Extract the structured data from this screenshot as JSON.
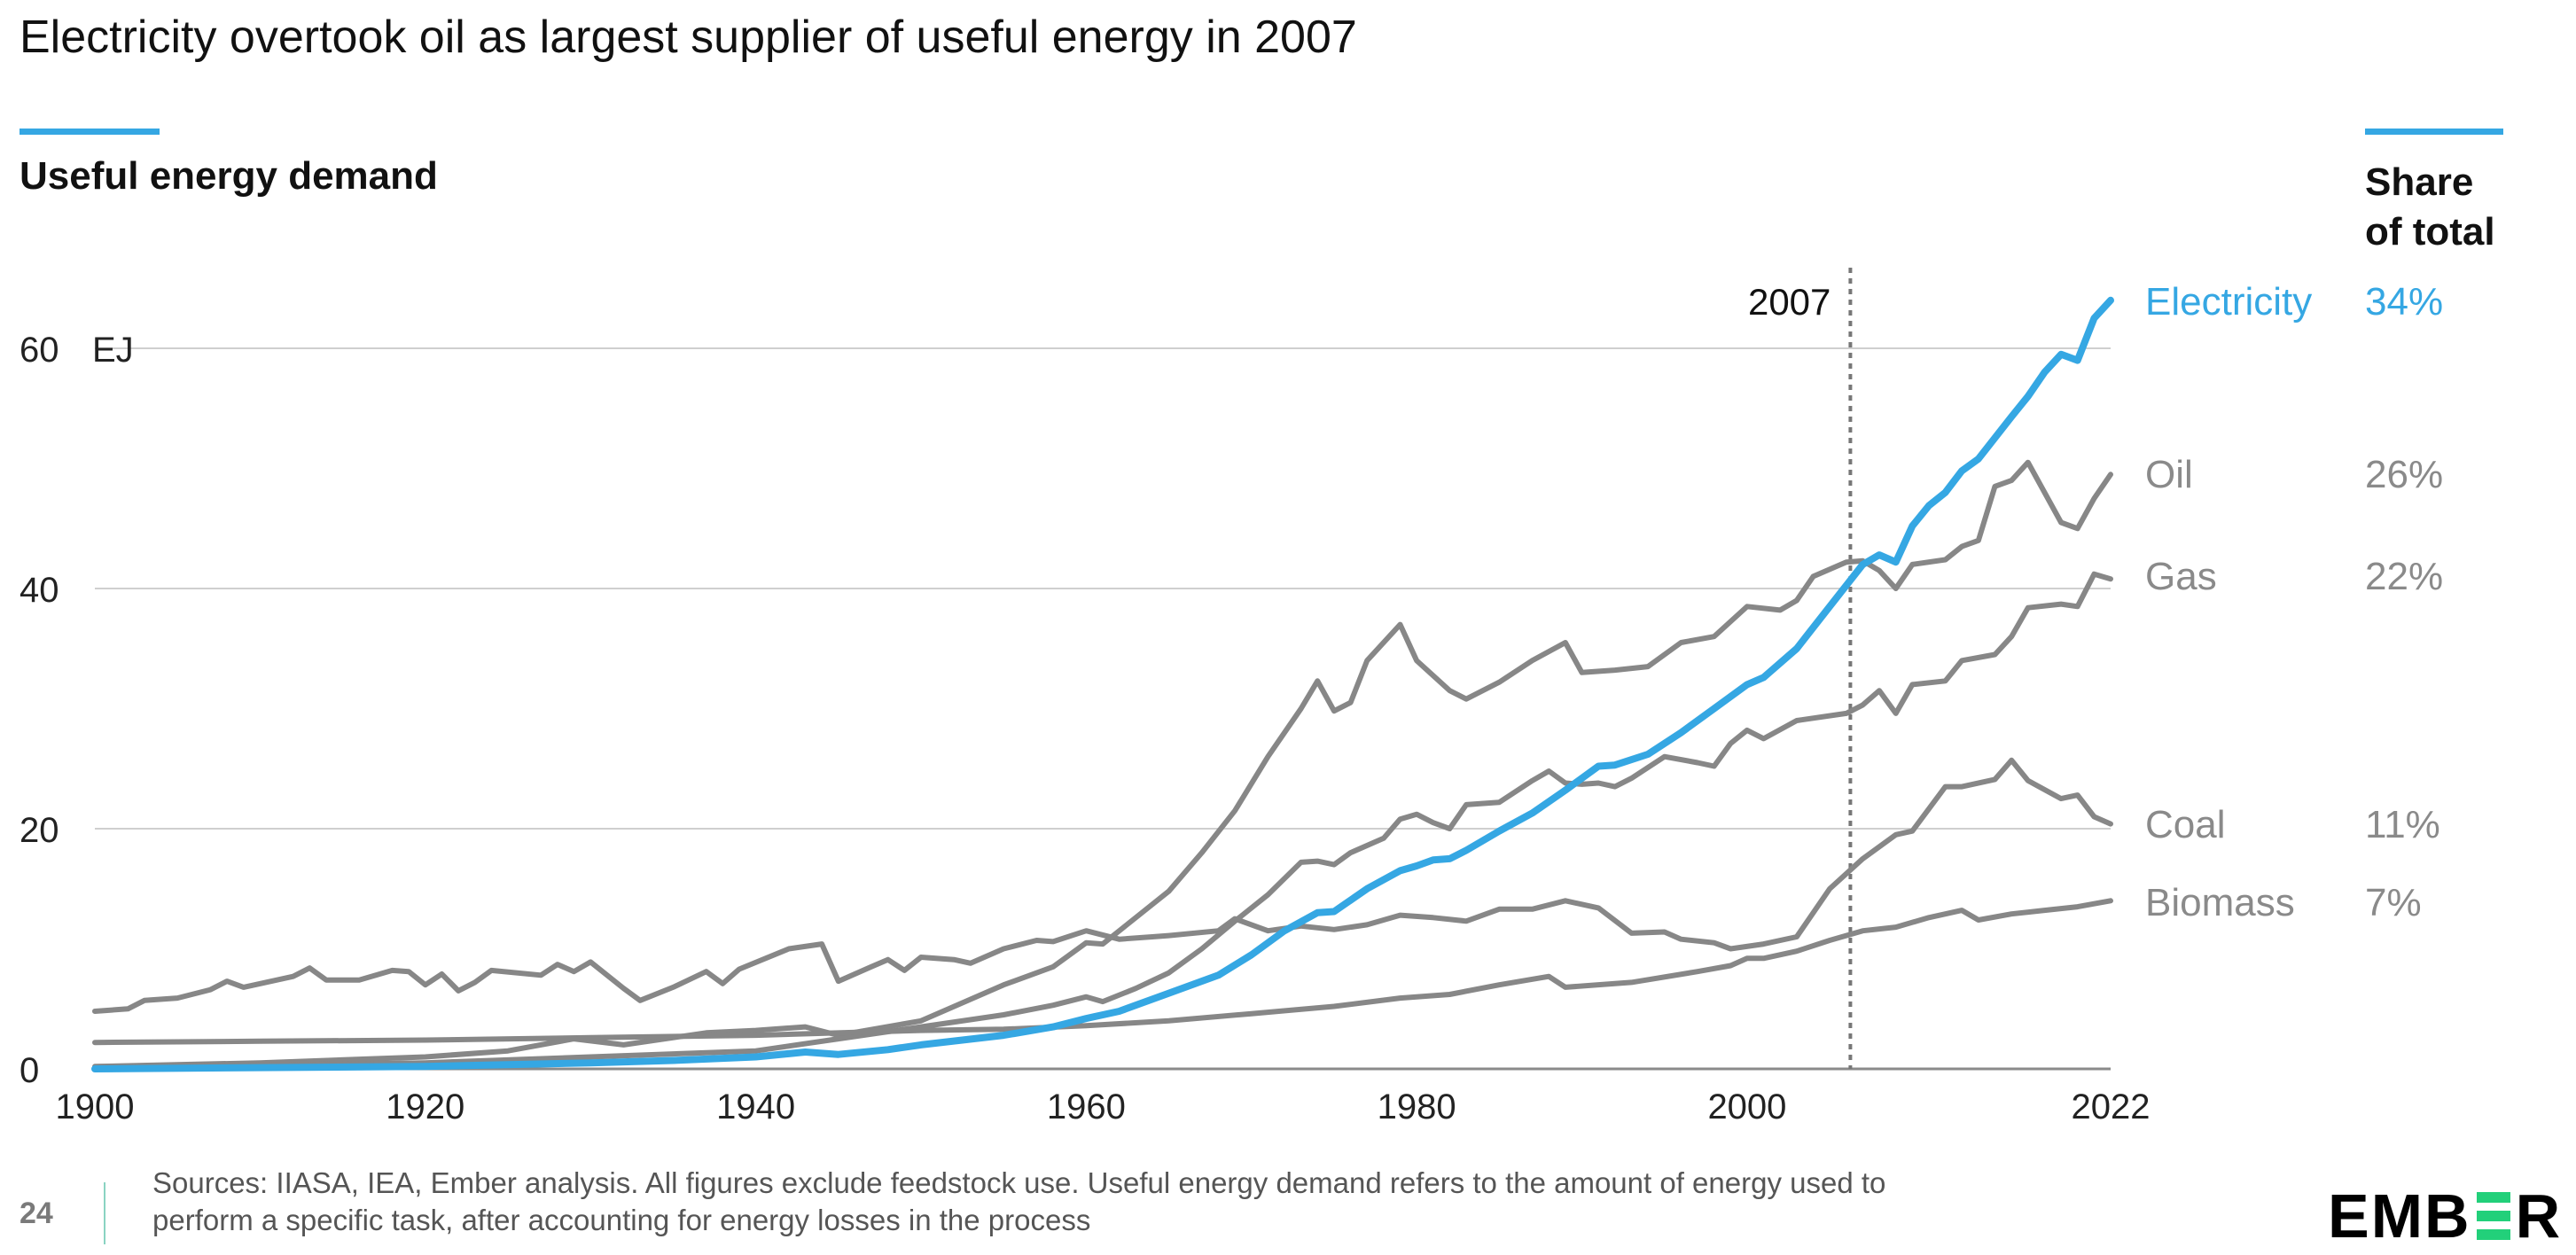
{
  "title": "Electricity overtook oil as largest supplier of useful energy in 2007",
  "subtitle": "Useful energy demand",
  "share_header": [
    "Share",
    "of total"
  ],
  "footer": {
    "page_number": "24",
    "sources_line1": "Sources: IIASA, IEA, Ember analysis. All figures exclude feedstock use. Useful energy demand refers to the amount of energy used to",
    "sources_line2": "perform a specific task, after accounting for energy losses in the process",
    "logo": "EMBER"
  },
  "colors": {
    "accent": "#35a7e3",
    "gray": "#878787",
    "logo_green": "#22d07a"
  },
  "chart_data": {
    "type": "line",
    "title": "Useful energy demand",
    "ylabel": "EJ",
    "xlim": [
      1900,
      2022
    ],
    "ylim": [
      0,
      64
    ],
    "x_ticks": [
      "1900",
      "1920",
      "1940",
      "1960",
      "1980",
      "2000",
      "2022"
    ],
    "y_ticks": [
      "0",
      "20",
      "40",
      "60"
    ],
    "y_unit": "EJ",
    "grid": true,
    "annotation": {
      "x": 2007,
      "label": "2007"
    },
    "series": [
      {
        "name": "Coal",
        "share": "11%",
        "highlight": false,
        "x": [
          1900,
          1902,
          1903,
          1905,
          1907,
          1908,
          1909,
          1912,
          1913,
          1914,
          1916,
          1918,
          1919,
          1920,
          1921,
          1922,
          1923,
          1924,
          1927,
          1928,
          1929,
          1930,
          1932,
          1933,
          1935,
          1937,
          1938,
          1939,
          1942,
          1944,
          1945,
          1947,
          1948,
          1949,
          1950,
          1952,
          1953,
          1955,
          1957,
          1958,
          1960,
          1962,
          1964,
          1965,
          1968,
          1969,
          1971,
          1973,
          1975,
          1977,
          1979,
          1981,
          1983,
          1985,
          1987,
          1989,
          1991,
          1993,
          1995,
          1996,
          1998,
          1999,
          2001,
          2003,
          2005,
          2007,
          2009,
          2010,
          2012,
          2013,
          2015,
          2016,
          2017,
          2019,
          2020,
          2021,
          2022
        ],
        "y": [
          4.8,
          5,
          5.7,
          5.9,
          6.6,
          7.3,
          6.8,
          7.7,
          8.4,
          7.4,
          7.4,
          8.2,
          8.1,
          7,
          7.9,
          6.5,
          7.2,
          8.2,
          7.8,
          8.7,
          8.1,
          8.9,
          6.7,
          5.7,
          6.8,
          8.1,
          7.1,
          8.3,
          10,
          10.4,
          7.3,
          8.5,
          9.1,
          8.2,
          9.3,
          9.1,
          8.8,
          10,
          10.7,
          10.6,
          11.5,
          10.8,
          11,
          11.1,
          11.5,
          12.5,
          11.5,
          11.9,
          11.6,
          12,
          12.8,
          12.6,
          12.3,
          13.3,
          13.3,
          14,
          13.4,
          11.3,
          11.4,
          10.8,
          10.5,
          10,
          10.4,
          11,
          15,
          17.5,
          19.5,
          19.8,
          23.5,
          23.5,
          24.1,
          25.7,
          24,
          22.5,
          22.8,
          21,
          20.4
        ]
      },
      {
        "name": "Oil",
        "share": "26%",
        "highlight": false,
        "x": [
          1900,
          1910,
          1920,
          1925,
          1929,
          1932,
          1937,
          1940,
          1943,
          1945,
          1950,
          1955,
          1958,
          1960,
          1961,
          1963,
          1965,
          1967,
          1969,
          1971,
          1973,
          1974,
          1975,
          1976,
          1977,
          1979,
          1980,
          1982,
          1983,
          1985,
          1987,
          1989,
          1990,
          1992,
          1994,
          1996,
          1998,
          2000,
          2002,
          2003,
          2004,
          2006,
          2007,
          2008,
          2009,
          2010,
          2012,
          2013,
          2014,
          2015,
          2016,
          2017,
          2019,
          2020,
          2021,
          2022
        ],
        "y": [
          0.2,
          0.5,
          1,
          1.5,
          2.5,
          2,
          3,
          3.2,
          3.5,
          2.8,
          4,
          7,
          8.5,
          10.5,
          10.4,
          12.6,
          14.8,
          18,
          21.5,
          26,
          30,
          32.3,
          29.8,
          30.5,
          34,
          37,
          34,
          31.5,
          30.8,
          32.2,
          34,
          35.5,
          33,
          33.2,
          33.5,
          35.5,
          36,
          38.5,
          38.2,
          39,
          41,
          42.2,
          42.3,
          41.5,
          40,
          42,
          42.4,
          43.5,
          44,
          48.5,
          49,
          50.5,
          45.5,
          45,
          47.5,
          49.5
        ]
      },
      {
        "name": "Gas",
        "share": "22%",
        "highlight": false,
        "x": [
          1900,
          1920,
          1930,
          1940,
          1945,
          1950,
          1955,
          1958,
          1960,
          1961,
          1963,
          1965,
          1967,
          1969,
          1971,
          1973,
          1974,
          1975,
          1976,
          1978,
          1979,
          1980,
          1981,
          1982,
          1983,
          1985,
          1987,
          1988,
          1989,
          1990,
          1991,
          1992,
          1993,
          1995,
          1997,
          1998,
          1999,
          2000,
          2001,
          2003,
          2006,
          2007,
          2008,
          2009,
          2010,
          2012,
          2013,
          2015,
          2016,
          2017,
          2019,
          2020,
          2021,
          2022
        ],
        "y": [
          0.1,
          0.5,
          1,
          1.5,
          2.5,
          3.5,
          4.5,
          5.3,
          6,
          5.6,
          6.7,
          8,
          10,
          12.3,
          14.5,
          17.2,
          17.3,
          17,
          18,
          19.2,
          20.8,
          21.2,
          20.5,
          20,
          22,
          22.2,
          24,
          24.8,
          23.8,
          23.7,
          23.8,
          23.5,
          24.2,
          26,
          25.5,
          25.2,
          27.1,
          28.2,
          27.5,
          29,
          29.6,
          30.3,
          31.5,
          29.6,
          32,
          32.3,
          34,
          34.5,
          36,
          38.4,
          38.7,
          38.5,
          41.2,
          40.8
        ]
      },
      {
        "name": "Biomass",
        "share": "7%",
        "highlight": false,
        "x": [
          1900,
          1910,
          1920,
          1930,
          1940,
          1950,
          1955,
          1960,
          1965,
          1970,
          1975,
          1979,
          1982,
          1985,
          1988,
          1989,
          1993,
          1997,
          1999,
          2000,
          2001,
          2003,
          2005,
          2007,
          2009,
          2011,
          2013,
          2014,
          2016,
          2018,
          2020,
          2022
        ],
        "y": [
          2.2,
          2.3,
          2.4,
          2.6,
          2.8,
          3.2,
          3.3,
          3.6,
          4,
          4.6,
          5.2,
          5.9,
          6.2,
          7,
          7.7,
          6.8,
          7.2,
          8.1,
          8.6,
          9.2,
          9.2,
          9.8,
          10.7,
          11.5,
          11.8,
          12.6,
          13.2,
          12.4,
          12.9,
          13.2,
          13.5,
          14
        ]
      },
      {
        "name": "Electricity",
        "share": "34%",
        "highlight": true,
        "x": [
          1900,
          1920,
          1930,
          1935,
          1940,
          1943,
          1945,
          1948,
          1950,
          1955,
          1958,
          1960,
          1962,
          1965,
          1968,
          1970,
          1972,
          1974,
          1975,
          1977,
          1979,
          1980,
          1981,
          1982,
          1983,
          1985,
          1987,
          1989,
          1991,
          1992,
          1994,
          1996,
          1998,
          2000,
          2001,
          2003,
          2005,
          2007,
          2008,
          2009,
          2010,
          2011,
          2012,
          2013,
          2014,
          2016,
          2017,
          2018,
          2019,
          2020,
          2021,
          2022
        ],
        "y": [
          0,
          0.2,
          0.5,
          0.7,
          1,
          1.4,
          1.2,
          1.6,
          2,
          2.8,
          3.5,
          4.2,
          4.8,
          6.3,
          7.8,
          9.5,
          11.5,
          13,
          13.1,
          15,
          16.5,
          16.9,
          17.4,
          17.5,
          18.2,
          19.8,
          21.3,
          23.2,
          25.2,
          25.3,
          26.2,
          28,
          30,
          32,
          32.6,
          35,
          38.5,
          42,
          42.8,
          42.2,
          45.2,
          46.9,
          48,
          49.8,
          50.8,
          54.3,
          56,
          58,
          59.5,
          59,
          62.5,
          64
        ]
      }
    ]
  }
}
